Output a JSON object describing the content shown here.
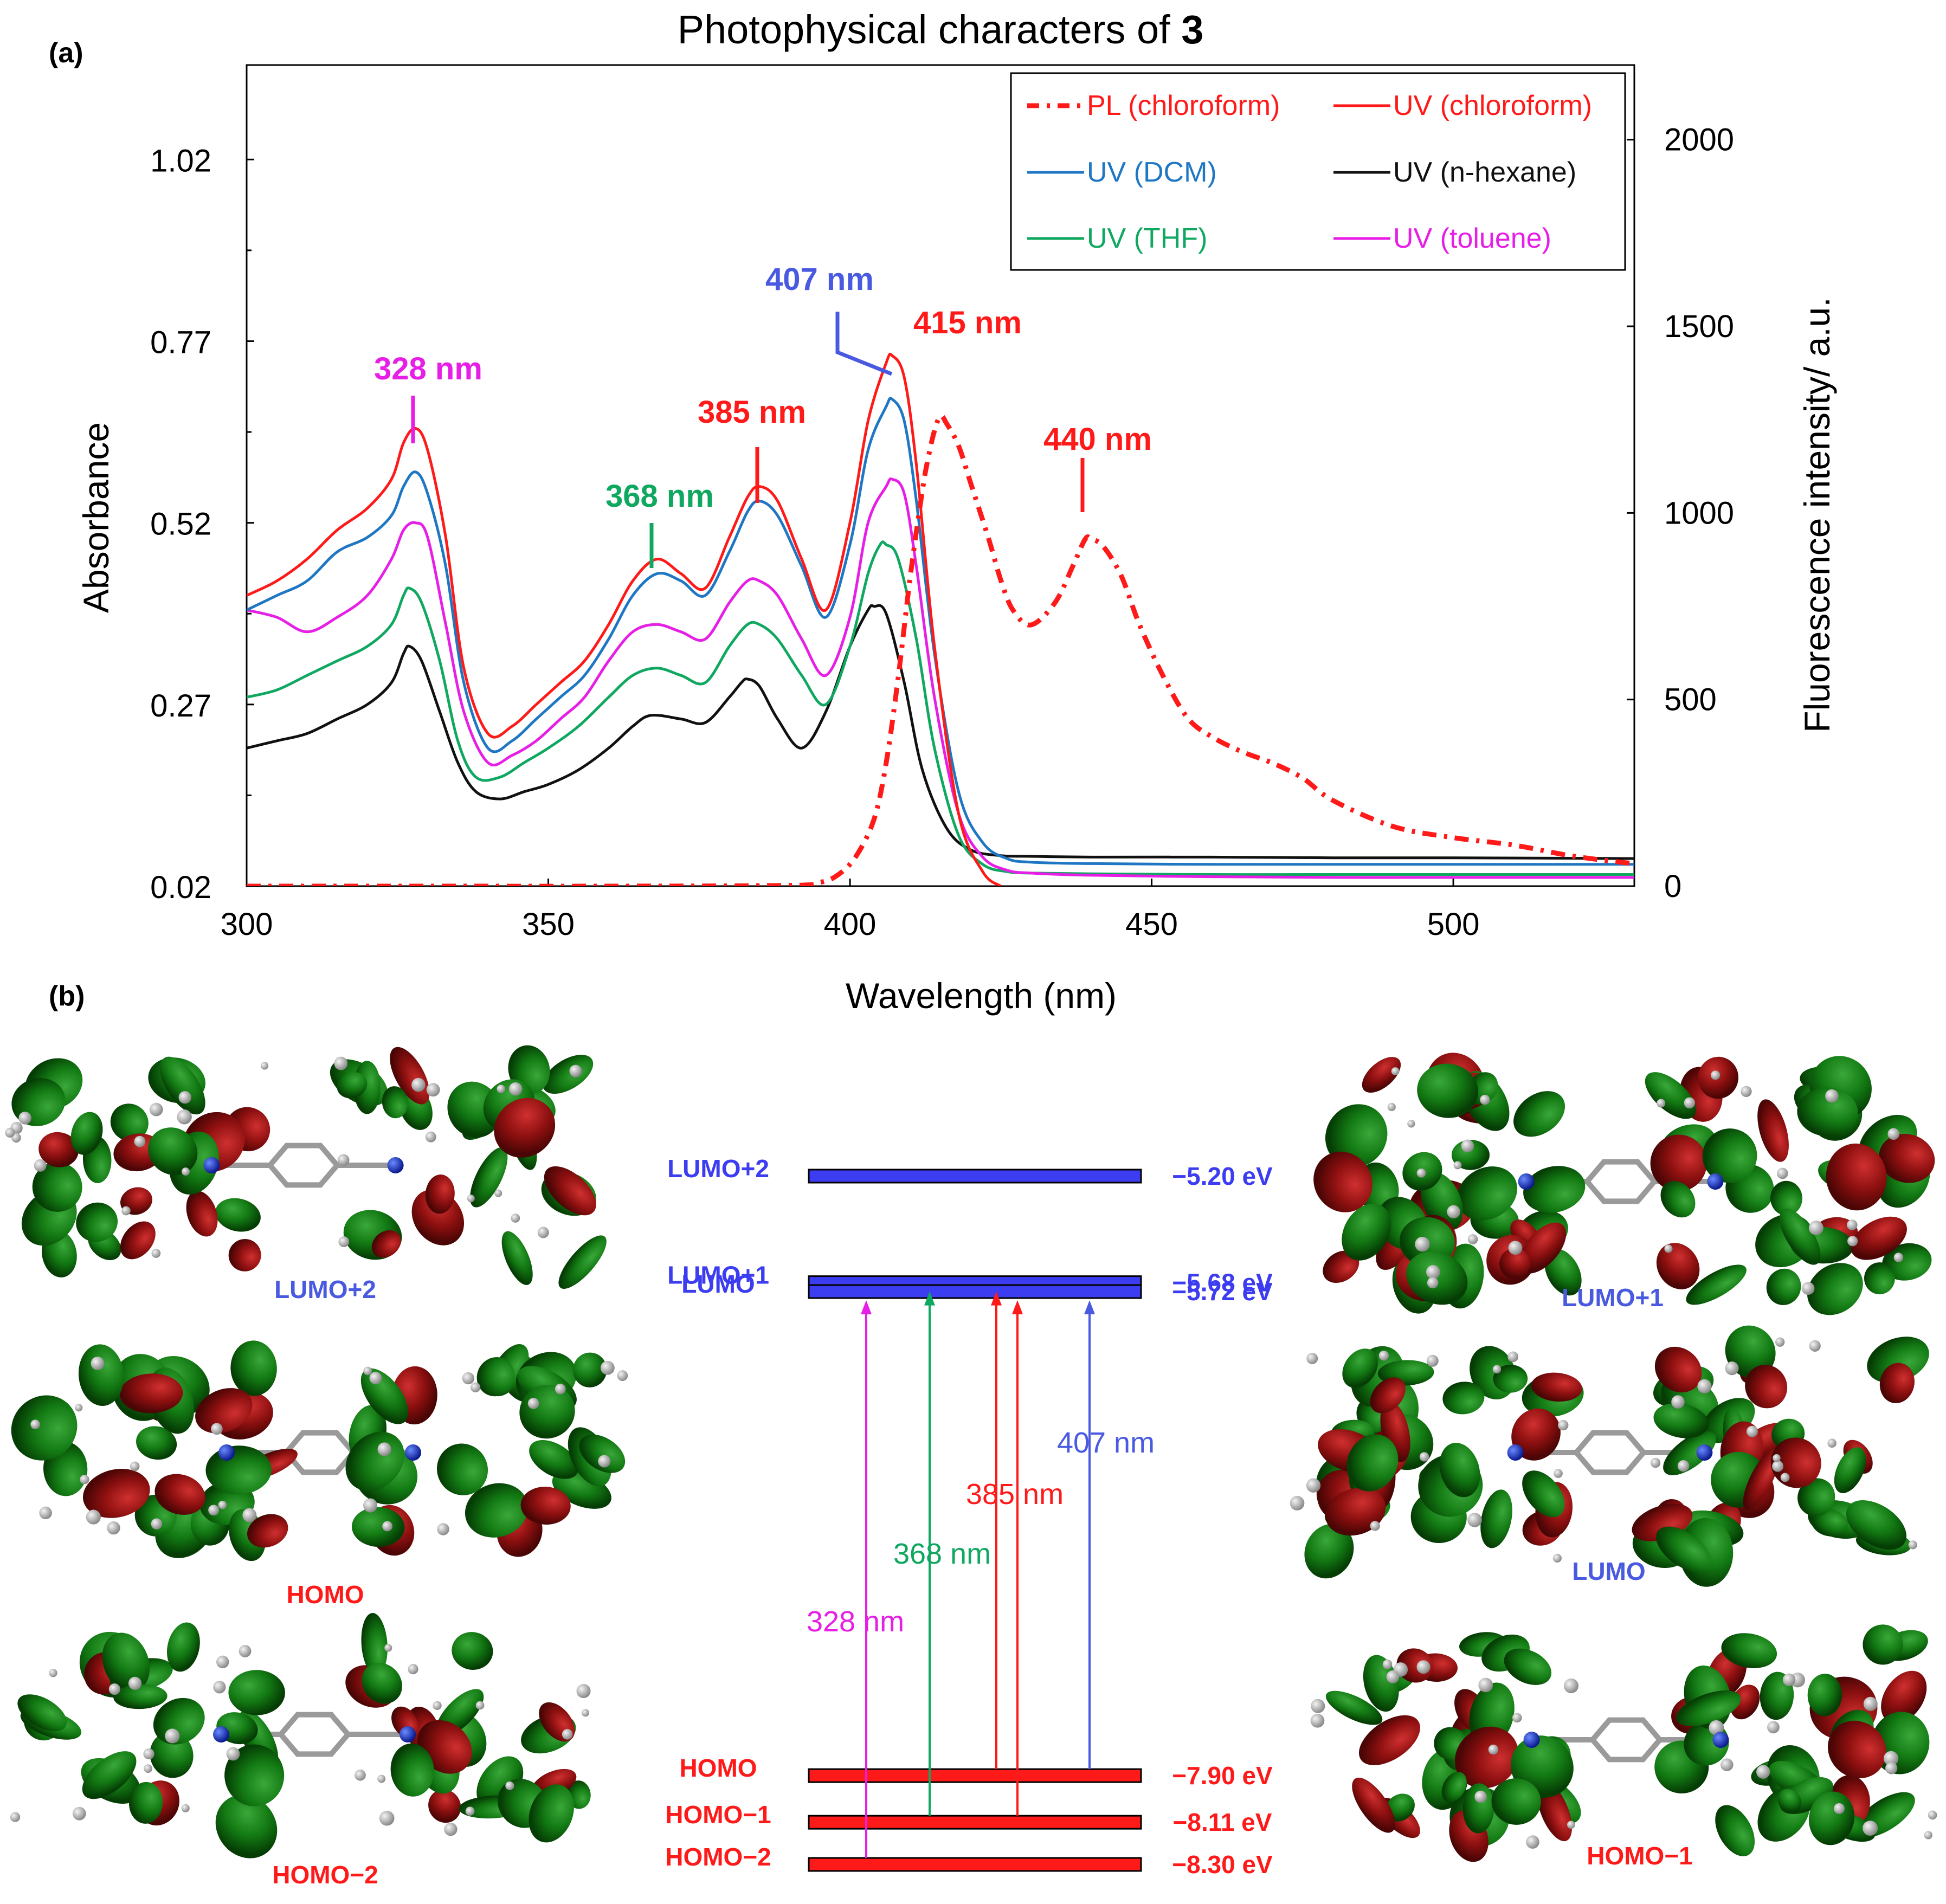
{
  "panel_labels": {
    "a": "(a)",
    "b": "(b)"
  },
  "chart_data": [
    {
      "type": "line",
      "title_prefix": "Photophysical characters of ",
      "title_compound": "3",
      "xlabel": "Wavelength (nm)",
      "ylabel": "Absorbance",
      "y2label": "Fluorescence intensity/ a.u.",
      "xlim": [
        300,
        530
      ],
      "ylim": [
        0.02,
        1.15
      ],
      "y2lim": [
        0,
        2200
      ],
      "xticks": [
        300,
        350,
        400,
        450,
        500
      ],
      "yticks": [
        0.02,
        0.27,
        0.52,
        0.77,
        1.02
      ],
      "ytick_labels": [
        "0.02",
        "0.27",
        "0.52",
        "0.77",
        "1.02"
      ],
      "y2ticks": [
        0,
        500,
        1000,
        1500,
        2000
      ],
      "colors": {
        "red": "#ff1a1a",
        "blue": "#1f77c4",
        "black": "#111111",
        "green": "#10a860",
        "magenta": "#e61ee6",
        "annot_blue": "#4a5ae0"
      },
      "series": [
        {
          "name": "UV (chloroform)",
          "color": "#ff1a1a",
          "axis": "left",
          "dash": "",
          "x": [
            300,
            305,
            310,
            315,
            320,
            324,
            326,
            328,
            330,
            333,
            336,
            340,
            344,
            348,
            352,
            356,
            360,
            364,
            368,
            372,
            376,
            380,
            383,
            385,
            388,
            392,
            396,
            400,
            403,
            406,
            407,
            409,
            411,
            414,
            418,
            422,
            425
          ],
          "y": [
            0.42,
            0.44,
            0.47,
            0.51,
            0.54,
            0.58,
            0.63,
            0.65,
            0.62,
            0.5,
            0.32,
            0.23,
            0.24,
            0.27,
            0.3,
            0.33,
            0.38,
            0.44,
            0.47,
            0.45,
            0.43,
            0.5,
            0.555,
            0.57,
            0.55,
            0.47,
            0.4,
            0.52,
            0.66,
            0.74,
            0.75,
            0.72,
            0.6,
            0.35,
            0.12,
            0.04,
            0.02
          ]
        },
        {
          "name": "UV (DCM)",
          "color": "#1f77c4",
          "axis": "left",
          "dash": "",
          "x": [
            300,
            305,
            310,
            315,
            320,
            324,
            326,
            328,
            330,
            333,
            336,
            340,
            344,
            348,
            352,
            356,
            360,
            364,
            368,
            372,
            376,
            380,
            383,
            385,
            388,
            392,
            396,
            400,
            403,
            406,
            407,
            409,
            411,
            414,
            418,
            422,
            426,
            430,
            440,
            460,
            480,
            500,
            530
          ],
          "y": [
            0.4,
            0.42,
            0.44,
            0.48,
            0.5,
            0.53,
            0.57,
            0.59,
            0.56,
            0.46,
            0.3,
            0.21,
            0.22,
            0.25,
            0.28,
            0.31,
            0.36,
            0.42,
            0.45,
            0.44,
            0.42,
            0.48,
            0.535,
            0.55,
            0.53,
            0.46,
            0.39,
            0.49,
            0.62,
            0.68,
            0.69,
            0.66,
            0.55,
            0.34,
            0.15,
            0.08,
            0.058,
            0.053,
            0.051,
            0.05,
            0.05,
            0.05,
            0.05
          ]
        },
        {
          "name": "UV (n-hexane)",
          "color": "#111111",
          "axis": "left",
          "dash": "",
          "x": [
            300,
            305,
            310,
            315,
            320,
            324,
            326,
            327,
            329,
            332,
            335,
            338,
            342,
            346,
            350,
            355,
            360,
            364,
            367,
            372,
            376,
            380,
            382,
            383,
            385,
            388,
            392,
            396,
            400,
            403,
            404,
            406,
            409,
            412,
            416,
            420,
            425,
            430,
            440,
            460,
            480,
            500,
            530
          ],
          "y": [
            0.21,
            0.22,
            0.23,
            0.25,
            0.27,
            0.3,
            0.34,
            0.35,
            0.33,
            0.26,
            0.19,
            0.15,
            0.14,
            0.15,
            0.16,
            0.18,
            0.21,
            0.24,
            0.255,
            0.25,
            0.245,
            0.28,
            0.3,
            0.305,
            0.295,
            0.25,
            0.21,
            0.26,
            0.35,
            0.4,
            0.405,
            0.395,
            0.3,
            0.18,
            0.1,
            0.07,
            0.062,
            0.061,
            0.06,
            0.06,
            0.059,
            0.059,
            0.058
          ]
        },
        {
          "name": "UV (THF)",
          "color": "#10a860",
          "axis": "left",
          "dash": "",
          "x": [
            300,
            305,
            310,
            315,
            320,
            324,
            326,
            327,
            329,
            332,
            335,
            338,
            342,
            346,
            350,
            355,
            360,
            364,
            368,
            372,
            376,
            380,
            383,
            385,
            388,
            392,
            396,
            400,
            403,
            405,
            406,
            408,
            411,
            414,
            418,
            422,
            426,
            430,
            440,
            460,
            480,
            500,
            530
          ],
          "y": [
            0.28,
            0.29,
            0.31,
            0.33,
            0.35,
            0.38,
            0.42,
            0.43,
            0.41,
            0.33,
            0.22,
            0.17,
            0.17,
            0.19,
            0.21,
            0.24,
            0.28,
            0.31,
            0.32,
            0.31,
            0.3,
            0.35,
            0.38,
            0.38,
            0.36,
            0.31,
            0.27,
            0.35,
            0.45,
            0.49,
            0.49,
            0.47,
            0.36,
            0.21,
            0.09,
            0.05,
            0.04,
            0.038,
            0.037,
            0.036,
            0.036,
            0.036,
            0.036
          ]
        },
        {
          "name": "UV (toluene)",
          "color": "#e61ee6",
          "axis": "left",
          "dash": "",
          "x": [
            300,
            305,
            310,
            315,
            320,
            324,
            326,
            328,
            330,
            333,
            336,
            340,
            344,
            348,
            352,
            356,
            360,
            364,
            368,
            372,
            376,
            380,
            383,
            385,
            388,
            392,
            396,
            400,
            403,
            406,
            407,
            409,
            411,
            414,
            418,
            422,
            426,
            430,
            440,
            460,
            480,
            500,
            530
          ],
          "y": [
            0.4,
            0.39,
            0.37,
            0.39,
            0.42,
            0.47,
            0.51,
            0.52,
            0.5,
            0.38,
            0.26,
            0.19,
            0.2,
            0.22,
            0.25,
            0.28,
            0.33,
            0.37,
            0.38,
            0.37,
            0.36,
            0.41,
            0.44,
            0.44,
            0.42,
            0.36,
            0.31,
            0.39,
            0.52,
            0.57,
            0.58,
            0.56,
            0.46,
            0.28,
            0.12,
            0.06,
            0.042,
            0.038,
            0.035,
            0.033,
            0.032,
            0.032,
            0.032
          ]
        },
        {
          "name": "PL (chloroform)",
          "color": "#ff1a1a",
          "axis": "right",
          "dash": "26 14 6 14",
          "x": [
            300,
            330,
            360,
            390,
            395,
            398,
            401,
            404,
            406,
            408,
            410,
            412,
            413,
            414,
            415,
            416,
            418,
            420,
            423,
            425,
            427,
            430,
            434,
            437,
            439,
            440,
            442,
            445,
            448,
            452,
            456,
            460,
            465,
            470,
            475,
            480,
            490,
            500,
            510,
            520,
            530
          ],
          "y": [
            0,
            0,
            0,
            2,
            10,
            30,
            80,
            180,
            330,
            560,
            830,
            1060,
            1150,
            1220,
            1260,
            1240,
            1180,
            1080,
            930,
            820,
            740,
            700,
            760,
            860,
            930,
            930,
            910,
            830,
            700,
            560,
            450,
            400,
            360,
            330,
            290,
            230,
            160,
            130,
            110,
            80,
            60
          ]
        }
      ],
      "annotations": [
        {
          "text": "328 nm",
          "color": "#e61ee6",
          "x": 328,
          "y": 0.65,
          "axis": "left"
        },
        {
          "text": "368 nm",
          "color": "#10a860",
          "x": 368,
          "y": 0.47,
          "axis": "left"
        },
        {
          "text": "385 nm",
          "color": "#ff1a1a",
          "x": 385,
          "y": 0.57,
          "axis": "left"
        },
        {
          "text": "407 nm",
          "color": "#4a5ae0",
          "x": 407,
          "y": 0.75,
          "axis": "left"
        },
        {
          "text": "415 nm",
          "color": "#ff1a1a",
          "x": 415,
          "y": 1260,
          "axis": "right"
        },
        {
          "text": "440 nm",
          "color": "#ff1a1a",
          "x": 440,
          "y": 930,
          "axis": "right"
        }
      ],
      "legend": {
        "position": "top-right",
        "entries": [
          "PL (chloroform)",
          "UV (chloroform)",
          "UV (DCM)",
          "UV (n-hexane)",
          "UV (THF)",
          "UV (toluene)"
        ]
      }
    },
    {
      "type": "energy-level-diagram",
      "unit": "eV",
      "levels": [
        {
          "name": "LUMO+2",
          "energy": -5.2,
          "energy_label": "−5.20 eV",
          "kind": "unoccupied"
        },
        {
          "name": "LUMO+1",
          "energy": -5.68,
          "energy_label": "−5.68 eV",
          "kind": "unoccupied"
        },
        {
          "name": "LUMO",
          "energy": -5.72,
          "energy_label": "−5.72 eV",
          "kind": "unoccupied"
        },
        {
          "name": "HOMO",
          "energy": -7.9,
          "energy_label": "−7.90 eV",
          "kind": "occupied"
        },
        {
          "name": "HOMO−1",
          "energy": -8.11,
          "energy_label": "−8.11 eV",
          "kind": "occupied"
        },
        {
          "name": "HOMO−2",
          "energy": -8.3,
          "energy_label": "−8.30 eV",
          "kind": "occupied"
        }
      ],
      "transitions": [
        {
          "label": "328 nm",
          "color": "#e61ee6",
          "from": "HOMO−2",
          "to": "LUMO"
        },
        {
          "label": "368 nm",
          "color": "#10a860",
          "from": "HOMO−1",
          "to": "LUMO+1"
        },
        {
          "label": "385 nm",
          "color": "#ff1a1a",
          "from": "HOMO",
          "to": "LUMO+1"
        },
        {
          "label": "385 nm",
          "color": "#ff1a1a",
          "from": "HOMO−1",
          "to": "LUMO"
        },
        {
          "label": "407 nm",
          "color": "#4a5ae0",
          "from": "HOMO",
          "to": "LUMO"
        }
      ],
      "orbital_images": [
        {
          "label": "LUMO+2",
          "color": "#4a5ae0"
        },
        {
          "label": "HOMO",
          "color": "#ff1a1a"
        },
        {
          "label": "HOMO−2",
          "color": "#ff1a1a"
        },
        {
          "label": "LUMO+1",
          "color": "#4a5ae0"
        },
        {
          "label": "LUMO",
          "color": "#4a5ae0"
        },
        {
          "label": "HOMO−1",
          "color": "#ff1a1a"
        }
      ],
      "level_colors": {
        "unoccupied": "#3c3cf0",
        "occupied": "#ff1a1a"
      }
    }
  ]
}
